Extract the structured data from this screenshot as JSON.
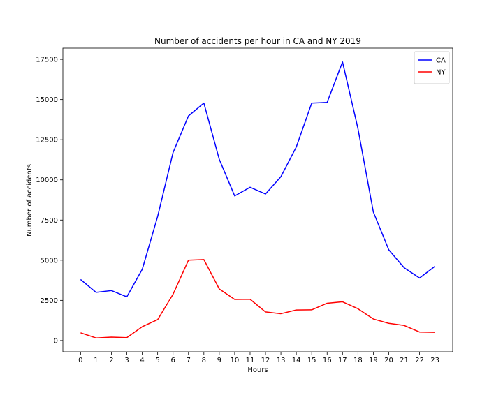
{
  "chart_data": {
    "type": "line",
    "title": "Number of accidents per hour in CA and NY 2019",
    "xlabel": "Hours",
    "ylabel": "Number of accidents",
    "x": [
      0,
      1,
      2,
      3,
      4,
      5,
      6,
      7,
      8,
      9,
      10,
      11,
      12,
      13,
      14,
      15,
      16,
      17,
      18,
      19,
      20,
      21,
      22,
      23
    ],
    "xlim": [
      -1.15,
      24.15
    ],
    "ylim": [
      -700,
      18200
    ],
    "y_ticks": [
      0,
      2500,
      5000,
      7500,
      10000,
      12500,
      15000,
      17500
    ],
    "grid": false,
    "legend_position": "top-right",
    "series": [
      {
        "name": "CA",
        "color": "#0000ff",
        "values": [
          3800,
          3000,
          3110,
          2720,
          4430,
          7720,
          11700,
          13980,
          14780,
          11280,
          9000,
          9540,
          9120,
          10200,
          12050,
          14780,
          14820,
          17340,
          13200,
          8000,
          5650,
          4530,
          3890,
          4620
        ]
      },
      {
        "name": "NY",
        "color": "#ff0000",
        "values": [
          480,
          160,
          210,
          180,
          860,
          1300,
          2880,
          5000,
          5040,
          3210,
          2560,
          2570,
          1780,
          1670,
          1900,
          1910,
          2320,
          2410,
          1980,
          1340,
          1070,
          940,
          530,
          510
        ]
      }
    ]
  }
}
